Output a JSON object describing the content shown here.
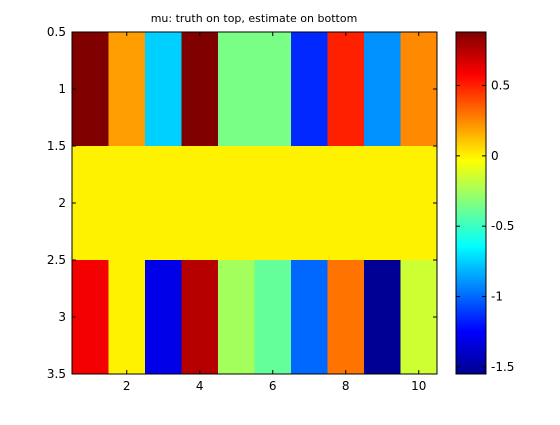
{
  "chart_data": {
    "type": "heatmap",
    "title": "mu: truth on top, estimate on bottom",
    "xlabel": "",
    "ylabel": "",
    "colormap": "jet",
    "x_ticks": [
      "2",
      "4",
      "6",
      "8",
      "10"
    ],
    "y_ticks": [
      "0.5",
      "1",
      "1.5",
      "2",
      "2.5",
      "3",
      "3.5"
    ],
    "xlim": [
      0.5,
      10.5
    ],
    "ylim": [
      3.5,
      0.5
    ],
    "color_limits": [
      -1.55,
      0.88
    ],
    "colorbar_ticks": [
      "0.5",
      "0",
      "-0.5",
      "-1",
      "-1.5"
    ],
    "columns": [
      1,
      2,
      3,
      4,
      5,
      6,
      7,
      8,
      9,
      10
    ],
    "rows": [
      1,
      2,
      3
    ],
    "values": [
      [
        0.88,
        0.2,
        -0.75,
        0.88,
        -0.35,
        -0.35,
        -1.15,
        0.5,
        -0.9,
        0.25
      ],
      [
        0.0,
        0.0,
        0.0,
        0.0,
        0.0,
        0.0,
        0.0,
        0.0,
        0.0,
        0.0
      ],
      [
        0.6,
        0.0,
        -1.3,
        0.75,
        -0.25,
        -0.4,
        -1.0,
        0.3,
        -1.5,
        -0.15
      ]
    ],
    "grid": false
  }
}
